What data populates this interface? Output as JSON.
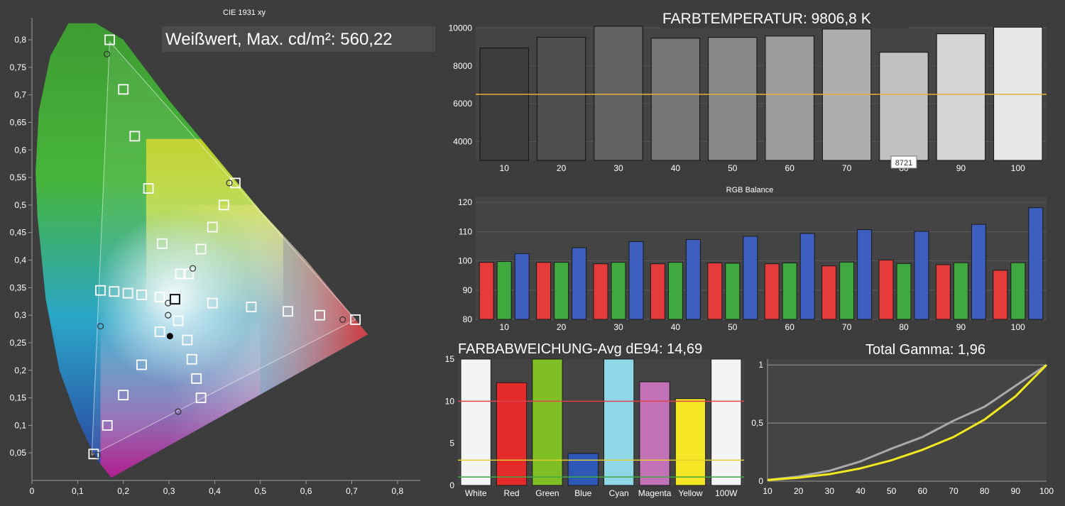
{
  "theme": {
    "background": "#3d3d3d",
    "panel": "#444444",
    "grid": "#8a8a8a",
    "red": "#e53b3b",
    "green": "#3fa83f",
    "blue": "#3e5fbf",
    "reference_line": "#e2b23a",
    "gamma_target": "#a9a9a9",
    "gamma_measured": "#f2ea1e"
  },
  "chart_data": [
    {
      "id": "cie",
      "type": "scatter",
      "title": "CIE 1931 xy",
      "annotation": "Weißwert, Max. cd/m²: 560,22",
      "xlim": [
        0,
        0.85
      ],
      "ylim": [
        0,
        0.84
      ],
      "x_ticks": [
        "0",
        "0,1",
        "0,2",
        "0,3",
        "0,4",
        "0,5",
        "0,6",
        "0,7",
        "0,8"
      ],
      "y_ticks": [
        "0,05",
        "0,1",
        "0,15",
        "0,2",
        "0,25",
        "0,3",
        "0,35",
        "0,4",
        "0,45",
        "0,5",
        "0,55",
        "0,6",
        "0,65",
        "0,7",
        "0,75",
        "0,8"
      ],
      "gamut_primaries": [
        [
          0.708,
          0.292
        ],
        [
          0.17,
          0.797
        ],
        [
          0.131,
          0.046
        ]
      ],
      "target_white": [
        0.313,
        0.329
      ],
      "target_squares": [
        [
          0.17,
          0.8
        ],
        [
          0.2,
          0.71
        ],
        [
          0.225,
          0.625
        ],
        [
          0.255,
          0.53
        ],
        [
          0.285,
          0.43
        ],
        [
          0.325,
          0.375
        ],
        [
          0.445,
          0.54
        ],
        [
          0.42,
          0.5
        ],
        [
          0.395,
          0.46
        ],
        [
          0.37,
          0.42
        ],
        [
          0.343,
          0.375
        ],
        [
          0.708,
          0.292
        ],
        [
          0.63,
          0.3
        ],
        [
          0.56,
          0.307
        ],
        [
          0.48,
          0.315
        ],
        [
          0.395,
          0.322
        ],
        [
          0.32,
          0.29
        ],
        [
          0.15,
          0.345
        ],
        [
          0.18,
          0.343
        ],
        [
          0.21,
          0.34
        ],
        [
          0.24,
          0.337
        ],
        [
          0.28,
          0.333
        ],
        [
          0.28,
          0.27
        ],
        [
          0.34,
          0.255
        ],
        [
          0.35,
          0.22
        ],
        [
          0.36,
          0.185
        ],
        [
          0.37,
          0.15
        ],
        [
          0.24,
          0.21
        ],
        [
          0.2,
          0.155
        ],
        [
          0.165,
          0.1
        ],
        [
          0.135,
          0.048
        ]
      ],
      "measured_points": [
        [
          0.164,
          0.774
        ],
        [
          0.432,
          0.54
        ],
        [
          0.68,
          0.292
        ],
        [
          0.15,
          0.28
        ],
        [
          0.143,
          0.046
        ],
        [
          0.298,
          0.322
        ],
        [
          0.298,
          0.3
        ],
        [
          0.352,
          0.385
        ],
        [
          0.32,
          0.125
        ]
      ],
      "measured_white": [
        0.302,
        0.262
      ]
    },
    {
      "id": "farbtemperatur",
      "type": "bar",
      "title": "FARBTEMPERATUR: 9806,8 K",
      "categories": [
        "10",
        "20",
        "30",
        "40",
        "50",
        "60",
        "70",
        "80",
        "90",
        "100"
      ],
      "values": [
        8950,
        9520,
        10100,
        9470,
        9510,
        9580,
        9950,
        8721,
        9700,
        10050
      ],
      "highlight_label": "8721",
      "reference": 6500,
      "ylim": [
        3000,
        10100
      ],
      "y_ticks": [
        "4000",
        "6000",
        "8000",
        "10000"
      ]
    },
    {
      "id": "rgb_balance",
      "type": "bar",
      "title": "RGB Balance",
      "categories": [
        "10",
        "20",
        "30",
        "40",
        "50",
        "60",
        "70",
        "80",
        "90",
        "100"
      ],
      "series": [
        {
          "values": [
            99.5,
            99.5,
            99.0,
            99.0,
            99.3,
            99.0,
            98.3,
            100.3,
            98.7,
            96.8
          ]
        },
        {
          "values": [
            99.8,
            99.5,
            99.5,
            99.5,
            99.2,
            99.3,
            99.6,
            99.1,
            99.4,
            99.4
          ]
        },
        {
          "values": [
            102.5,
            104.5,
            106.6,
            107.3,
            108.4,
            109.4,
            110.7,
            110.1,
            112.5,
            118.2
          ]
        }
      ],
      "ylim": [
        80,
        122
      ],
      "y_ticks": [
        "80",
        "90",
        "100",
        "110",
        "120"
      ]
    },
    {
      "id": "farbabweichung",
      "type": "bar",
      "title": "FARBABWEICHUNG-Avg dE94: 14,69",
      "categories": [
        "White",
        "Red",
        "Green",
        "Blue",
        "Cyan",
        "Magenta",
        "Yellow",
        "100W"
      ],
      "values": [
        15,
        12.2,
        15,
        3.8,
        15,
        12.3,
        10.3,
        15
      ],
      "colors": [
        "#f4f4f4",
        "#e52a2a",
        "#7fbf25",
        "#2e58b8",
        "#8fd6e6",
        "#c472b8",
        "#f5e626",
        "#f4f4f4"
      ],
      "thresholds": [
        10,
        3,
        1
      ],
      "ylim": [
        0,
        15
      ],
      "y_ticks": [
        "0",
        "5",
        "10",
        "15"
      ]
    },
    {
      "id": "gamma",
      "type": "line",
      "title": "Total Gamma: 1,96",
      "x": [
        10,
        20,
        30,
        40,
        50,
        60,
        70,
        80,
        90,
        100
      ],
      "series": [
        {
          "values": [
            0.01,
            0.04,
            0.09,
            0.17,
            0.28,
            0.38,
            0.52,
            0.64,
            0.82,
            1.0
          ]
        },
        {
          "values": [
            0.01,
            0.03,
            0.06,
            0.11,
            0.18,
            0.27,
            0.38,
            0.53,
            0.73,
            1.0
          ]
        }
      ],
      "xlim": [
        10,
        100
      ],
      "ylim": [
        0,
        1.05
      ],
      "x_ticks": [
        "10",
        "20",
        "30",
        "40",
        "50",
        "60",
        "70",
        "80",
        "90",
        "100"
      ],
      "y_ticks": [
        "0",
        "0,5",
        "1"
      ]
    }
  ]
}
